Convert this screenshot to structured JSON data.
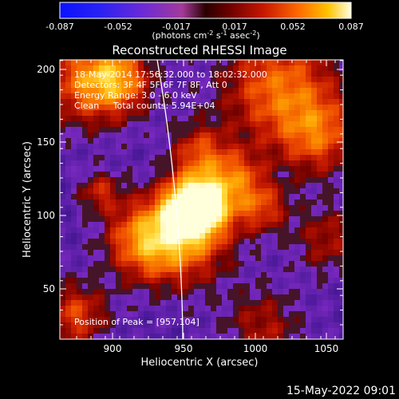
{
  "colorbar": {
    "tick_labels": [
      "-0.087",
      "-0.052",
      "-0.017",
      "0.017",
      "0.052",
      "0.087"
    ],
    "units": "(photons cm",
    "units_sup1": "-2",
    "units_mid1": " s",
    "units_sup2": "-1",
    "units_mid2": " asec",
    "units_sup3": "-2",
    "units_end": ")"
  },
  "image": {
    "title": "Reconstructed RHESSI Image",
    "info_lines": [
      "18-May-2014 17:56:32.000 to 18:02:32.000",
      "Detectors: 3F 4F 5F 6F 7F 8F, Att 0",
      "Energy Range: 3.0 - 6.0 keV",
      "Clean     Total counts: 5.94E+04"
    ],
    "peak_label": "Position of Peak = [957,104]"
  },
  "axes": {
    "xlabel": "Heliocentric X (arcsec)",
    "ylabel": "Heliocentric Y (arcsec)",
    "x_ticks": [
      "900",
      "950",
      "1000",
      "1050"
    ],
    "y_ticks": [
      "50",
      "100",
      "150",
      "200"
    ]
  },
  "footer": {
    "timestamp": "15-May-2022 09:01"
  },
  "colors": {
    "background": "#000000",
    "axis": "#ffffff",
    "low": "#5a1ea8",
    "high": "#fff2c0"
  }
}
